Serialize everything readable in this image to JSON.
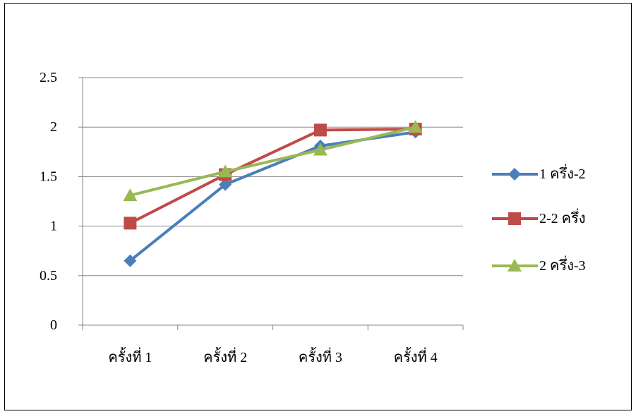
{
  "chart_data": {
    "type": "line",
    "categories": [
      "ครั้งที่ 1",
      "ครั้งที่ 2",
      "ครั้งที่ 3",
      "ครั้งที่ 4"
    ],
    "ylim": [
      0,
      2.5
    ],
    "yticks": [
      "0",
      "0.5",
      "1",
      "1.5",
      "2",
      "2.5"
    ],
    "grid": true,
    "legend_position": "right",
    "series": [
      {
        "name": "1 ครึ่ง-2",
        "values": [
          0.65,
          1.42,
          1.81,
          1.95
        ],
        "color": "#4a7ebb",
        "marker": "diamond"
      },
      {
        "name": "2-2 ครึ่ง",
        "values": [
          1.03,
          1.52,
          1.97,
          1.98
        ],
        "color": "#be4b48",
        "marker": "square"
      },
      {
        "name": "2 ครึ่ง-3",
        "values": [
          1.31,
          1.55,
          1.77,
          2.0
        ],
        "color": "#98b954",
        "marker": "triangle"
      }
    ]
  }
}
